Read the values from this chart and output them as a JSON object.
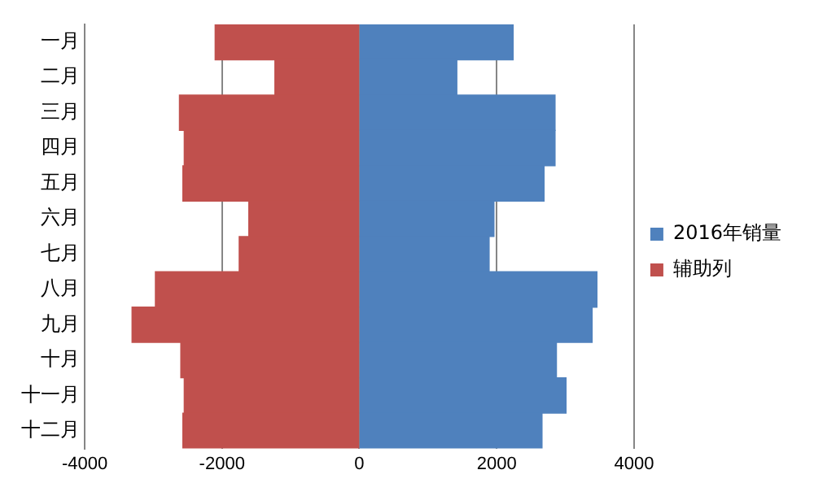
{
  "chart_data": {
    "type": "bar",
    "orientation": "horizontal",
    "stacked": true,
    "categories": [
      "一月",
      "二月",
      "三月",
      "四月",
      "五月",
      "六月",
      "七月",
      "八月",
      "九月",
      "十月",
      "十一月",
      "十二月"
    ],
    "series": [
      {
        "name": "2016年销量",
        "color": "#4f81bd",
        "values": [
          2240,
          1420,
          2850,
          2850,
          2690,
          1960,
          1890,
          3460,
          3390,
          2870,
          3010,
          2660
        ]
      },
      {
        "name": "辅助列",
        "color": "#c0504d",
        "values": [
          -2100,
          -1230,
          -2620,
          -2550,
          -2570,
          -1610,
          -1750,
          -2970,
          -3310,
          -2600,
          -2550,
          -2570
        ]
      }
    ],
    "xlim": [
      -4000,
      4000
    ],
    "xticks": [
      -4000,
      -2000,
      0,
      2000,
      4000
    ],
    "grid": "x",
    "legend": "right"
  }
}
